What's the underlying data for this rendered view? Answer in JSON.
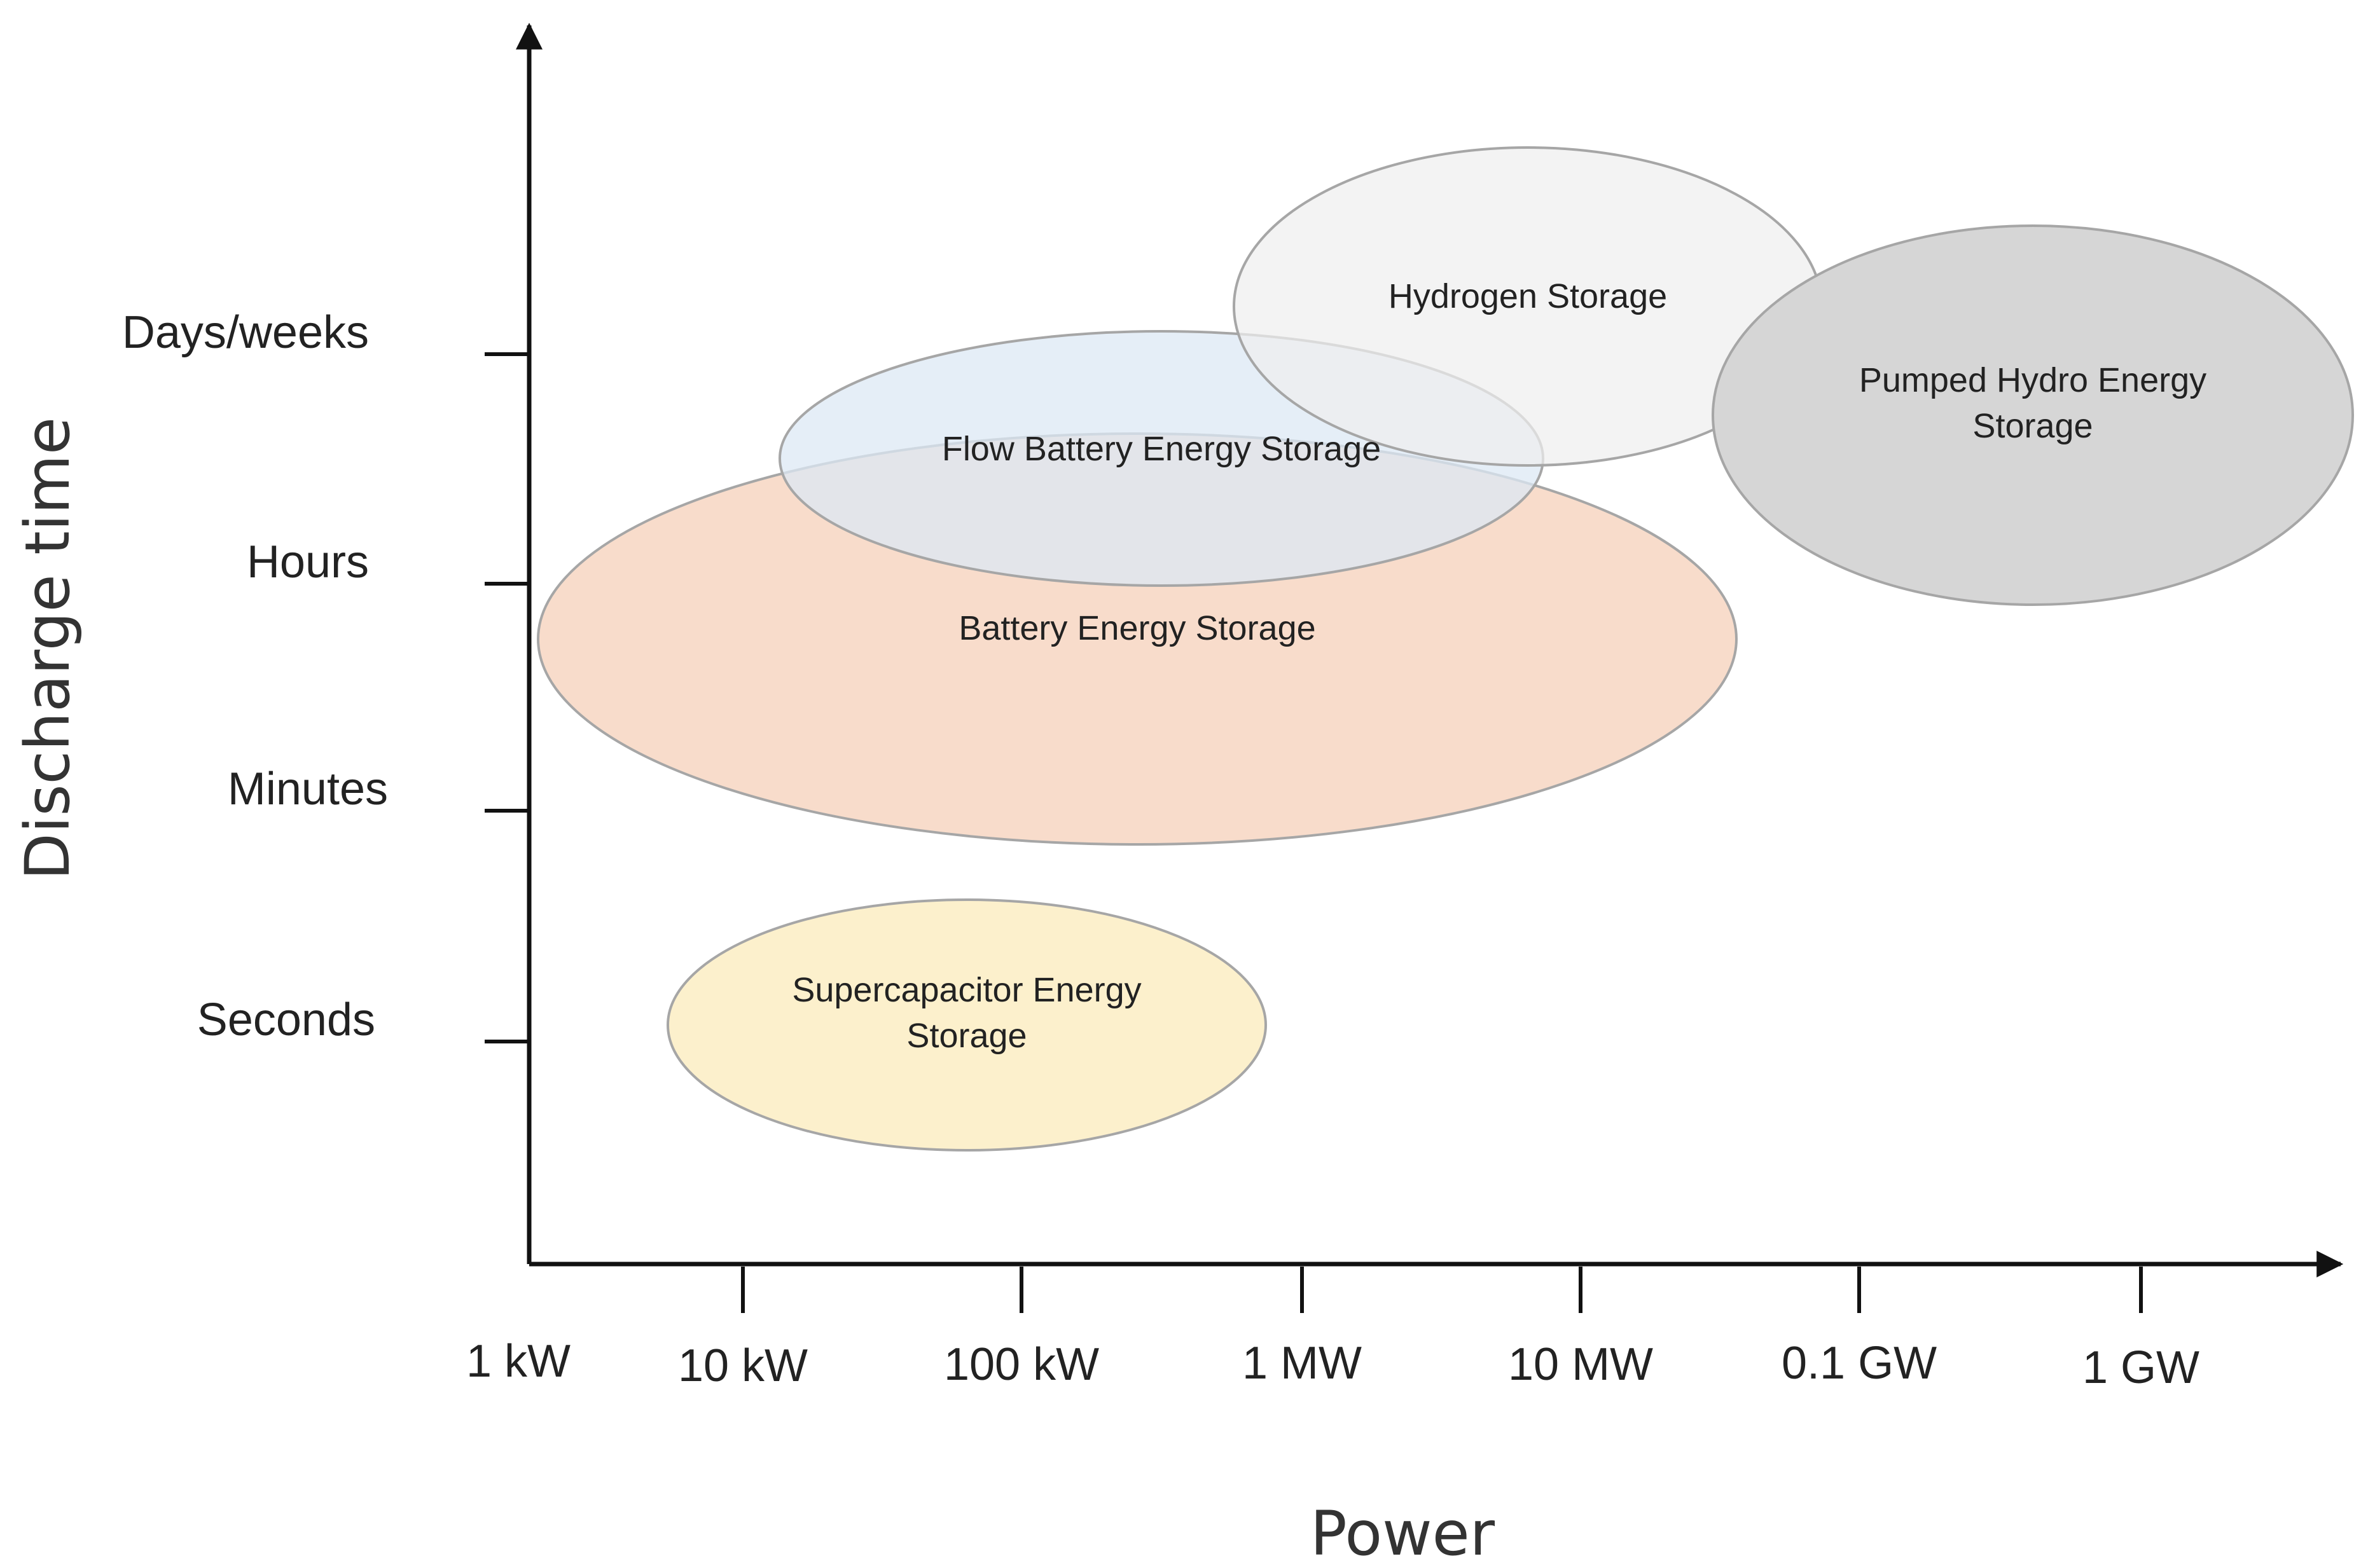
{
  "chart_data": {
    "type": "scatter",
    "title": "",
    "xlabel": "Power",
    "ylabel": "Discharge time",
    "x_ticks": [
      "1 kW",
      "10 kW",
      "100 kW",
      "1 MW",
      "10 MW",
      "0.1 GW",
      "1 GW"
    ],
    "y_ticks": [
      "Seconds",
      "Minutes",
      "Hours",
      "Days/weeks"
    ],
    "grid": false,
    "regions": [
      {
        "label": "Battery Energy Storage",
        "lines": [
          "Battery Energy Storage"
        ],
        "power_range": [
          "1 kW",
          "0.1 GW"
        ],
        "discharge_range": [
          "Minutes",
          "Hours"
        ],
        "color": "#f8dccb"
      },
      {
        "label": "Flow Battery Energy Storage",
        "lines": [
          "Flow Battery Energy Storage"
        ],
        "power_range": [
          "10 kW",
          "10 MW"
        ],
        "discharge_range": [
          "Hours",
          "Days/weeks"
        ],
        "color": "#dce8f4"
      },
      {
        "label": "Hydrogen Storage",
        "lines": [
          "Hydrogen Storage"
        ],
        "power_range": [
          "1 MW",
          "0.1 GW"
        ],
        "discharge_range": [
          "Hours",
          "Days/weeks"
        ],
        "color": "#eeeeee"
      },
      {
        "label": "Pumped Hydro Energy Storage",
        "lines": [
          "Pumped Hydro Energy",
          "Storage"
        ],
        "power_range": [
          "0.1 GW",
          "1 GW"
        ],
        "discharge_range": [
          "Hours",
          "Days/weeks"
        ],
        "color": "#d6d6d6"
      },
      {
        "label": "Supercapacitor Energy Storage",
        "lines": [
          "Supercapacitor Energy",
          "Storage"
        ],
        "power_range": [
          "10 kW",
          "1 MW"
        ],
        "discharge_range": [
          "Seconds",
          "Seconds"
        ],
        "color": "#fcf0cc"
      }
    ]
  }
}
